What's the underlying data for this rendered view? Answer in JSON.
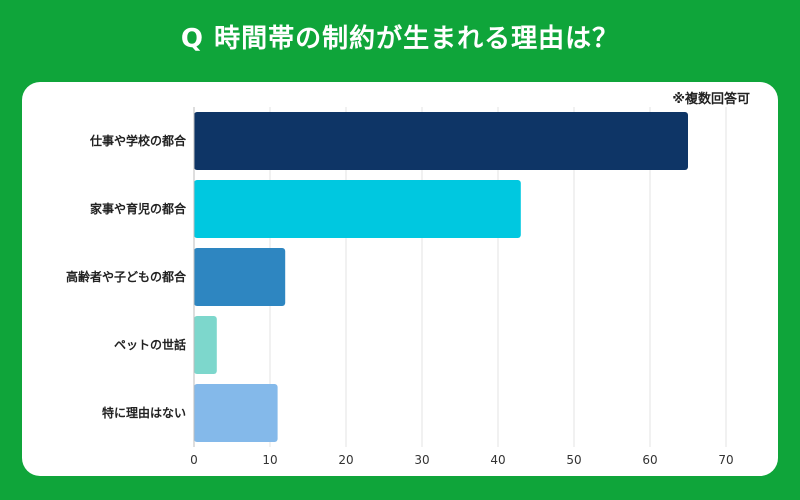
{
  "title": "Q 時間帯の制約が生まれる理由は？",
  "note": "※複数回答可",
  "chart_data": {
    "type": "bar",
    "orientation": "horizontal",
    "categories": [
      "仕事や学校の都合",
      "家事や育児の都合",
      "高齢者や子どもの都合",
      "ペットの世話",
      "特に理由はない"
    ],
    "values": [
      65,
      43,
      12,
      3,
      11
    ],
    "colors": [
      "#0e3566",
      "#00c8e0",
      "#2e86c1",
      "#7dd7cc",
      "#84b9ea"
    ],
    "xlim": [
      0,
      70
    ],
    "xticks": [
      0,
      10,
      20,
      30,
      40,
      50,
      60,
      70
    ],
    "grid": true
  }
}
